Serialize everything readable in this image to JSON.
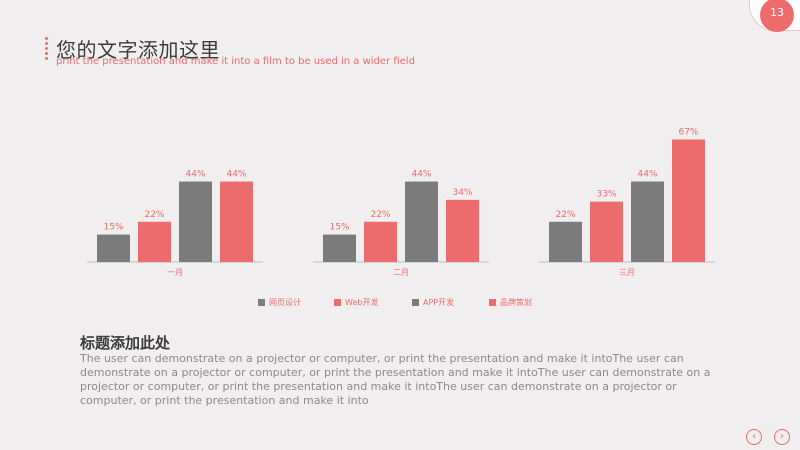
{
  "header": {
    "title": "您的文字添加这里",
    "subtitle": "print the presentation and make it into a film to be used in a wider field",
    "page_number": "13"
  },
  "colors": {
    "gray": "#7b7b7b",
    "coral": "#ec6b6d",
    "axis": "#bdbdbd"
  },
  "chart_data": {
    "type": "bar",
    "categories": [
      "一月",
      "二月",
      "三月"
    ],
    "series": [
      {
        "name": "网页设计",
        "values": [
          15,
          15,
          22
        ],
        "color": "#7b7b7b"
      },
      {
        "name": "Web开发",
        "values": [
          22,
          22,
          33
        ],
        "color": "#ec6b6d"
      },
      {
        "name": "APP开发",
        "values": [
          44,
          44,
          44
        ],
        "color": "#7b7b7b"
      },
      {
        "name": "品牌策划",
        "values": [
          44,
          34,
          67
        ],
        "color": "#ec6b6d"
      }
    ],
    "value_suffix": "%",
    "ylim": [
      0,
      70
    ],
    "grid": false,
    "legend": "bottom"
  },
  "text_block": {
    "title": "标题添加此处",
    "body": "The user can demonstrate on a projector or computer, or print the presentation and make it intoThe user can demonstrate on a projector or computer, or print the presentation and make it intoThe user can demonstrate on a projector or computer, or print the presentation and make it intoThe user can demonstrate on a projector or computer, or print the presentation and make it into"
  },
  "nav": {
    "prev_icon": "‹",
    "next_icon": "›"
  }
}
